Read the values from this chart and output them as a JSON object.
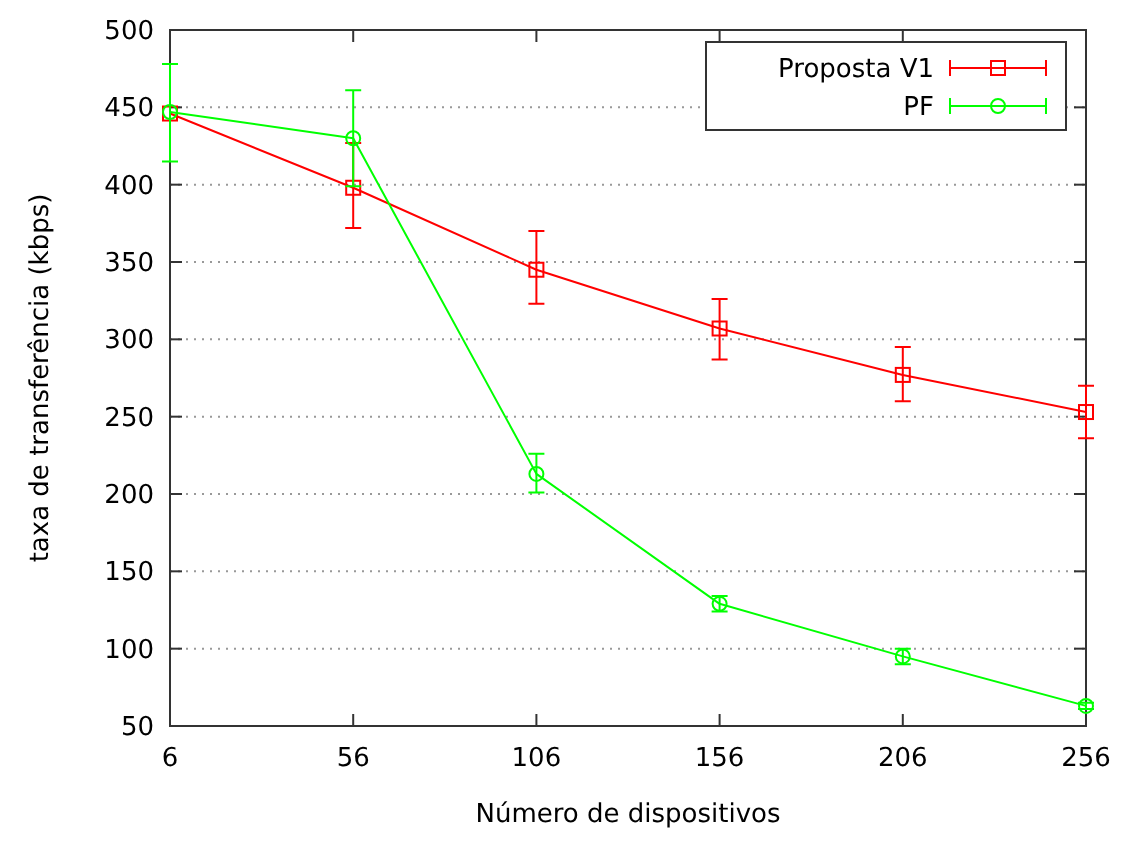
{
  "chart_data": {
    "type": "line",
    "xlabel": "Número de dispositivos",
    "ylabel": "taxa de transferência (kbps)",
    "x": [
      6,
      56,
      106,
      156,
      206,
      256
    ],
    "xlim": [
      6,
      256
    ],
    "xticks": [
      6,
      56,
      106,
      156,
      206,
      256
    ],
    "ylim": [
      50,
      500
    ],
    "yticks": [
      50,
      100,
      150,
      200,
      250,
      300,
      350,
      400,
      450,
      500
    ],
    "grid": "y",
    "legend": "top right",
    "series": [
      {
        "name": "Proposta V1",
        "color": "#ff0000",
        "marker": "square",
        "values": [
          446,
          398,
          345,
          307,
          277,
          253
        ],
        "errors": [
          null,
          [
            372,
            427
          ],
          [
            323,
            370
          ],
          [
            287,
            326
          ],
          [
            260,
            295
          ],
          [
            236,
            270
          ]
        ]
      },
      {
        "name": "PF",
        "color": "#00ff00",
        "marker": "circle",
        "values": [
          447,
          430,
          213,
          129,
          95,
          63
        ],
        "errors": [
          [
            415,
            478
          ],
          [
            399,
            461
          ],
          [
            201,
            226
          ],
          [
            124,
            134
          ],
          [
            90,
            100
          ],
          [
            61,
            65
          ]
        ]
      }
    ]
  }
}
